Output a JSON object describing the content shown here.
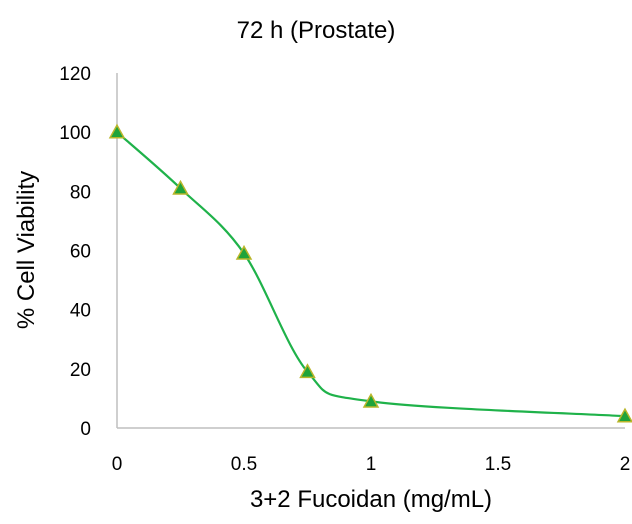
{
  "chart_data": {
    "type": "line",
    "title": "72 h (Prostate)",
    "xlabel": "3+2 Fucoidan (mg/mL)",
    "ylabel": "% Cell Viability",
    "xlim": [
      0,
      2
    ],
    "ylim": [
      0,
      120
    ],
    "x_ticks": [
      "0",
      "0.5",
      "1",
      "1.5",
      "2"
    ],
    "y_ticks": [
      "0",
      "20",
      "40",
      "60",
      "80",
      "100",
      "120"
    ],
    "grid": false,
    "legend": "none",
    "series": [
      {
        "x": [
          0,
          0.25,
          0.5,
          0.75,
          1,
          2
        ],
        "y": [
          100,
          81,
          59,
          19,
          9,
          4
        ],
        "line_color": "#1fb24a",
        "marker": "triangle",
        "marker_fill": "#1fa33a",
        "marker_edge": "#b9b62a"
      }
    ]
  }
}
